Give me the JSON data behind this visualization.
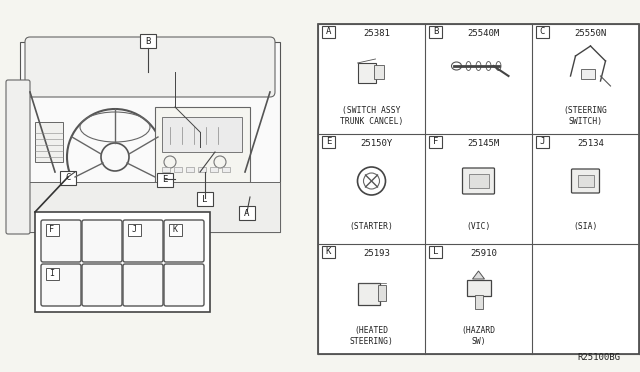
{
  "bg_color": "#f5f5f0",
  "border_color": "#333333",
  "line_color": "#444444",
  "text_color": "#222222",
  "diagram_ref": "R25100BG",
  "grid_cells": [
    {
      "row": 0,
      "col": 0,
      "label": "A",
      "part": "25381",
      "desc": "(SWITCH ASSY\nTRUNK CANCEL)"
    },
    {
      "row": 0,
      "col": 1,
      "label": "B",
      "part": "25540M",
      "desc": ""
    },
    {
      "row": 0,
      "col": 2,
      "label": "C",
      "part": "25550N",
      "desc": "(STEERING\nSWITCH)"
    },
    {
      "row": 1,
      "col": 0,
      "label": "E",
      "part": "25150Y",
      "desc": "(STARTER)"
    },
    {
      "row": 1,
      "col": 1,
      "label": "F",
      "part": "25145M",
      "desc": "(VIC)"
    },
    {
      "row": 1,
      "col": 2,
      "label": "J",
      "part": "25134",
      "desc": "(SIA)"
    },
    {
      "row": 2,
      "col": 0,
      "label": "K",
      "part": "25193",
      "desc": "(HEATED\nSTEERING)"
    },
    {
      "row": 2,
      "col": 1,
      "label": "L",
      "part": "25910",
      "desc": "(HAZARD\nSW)"
    },
    {
      "row": 2,
      "col": 2,
      "label": "",
      "part": "",
      "desc": ""
    }
  ]
}
